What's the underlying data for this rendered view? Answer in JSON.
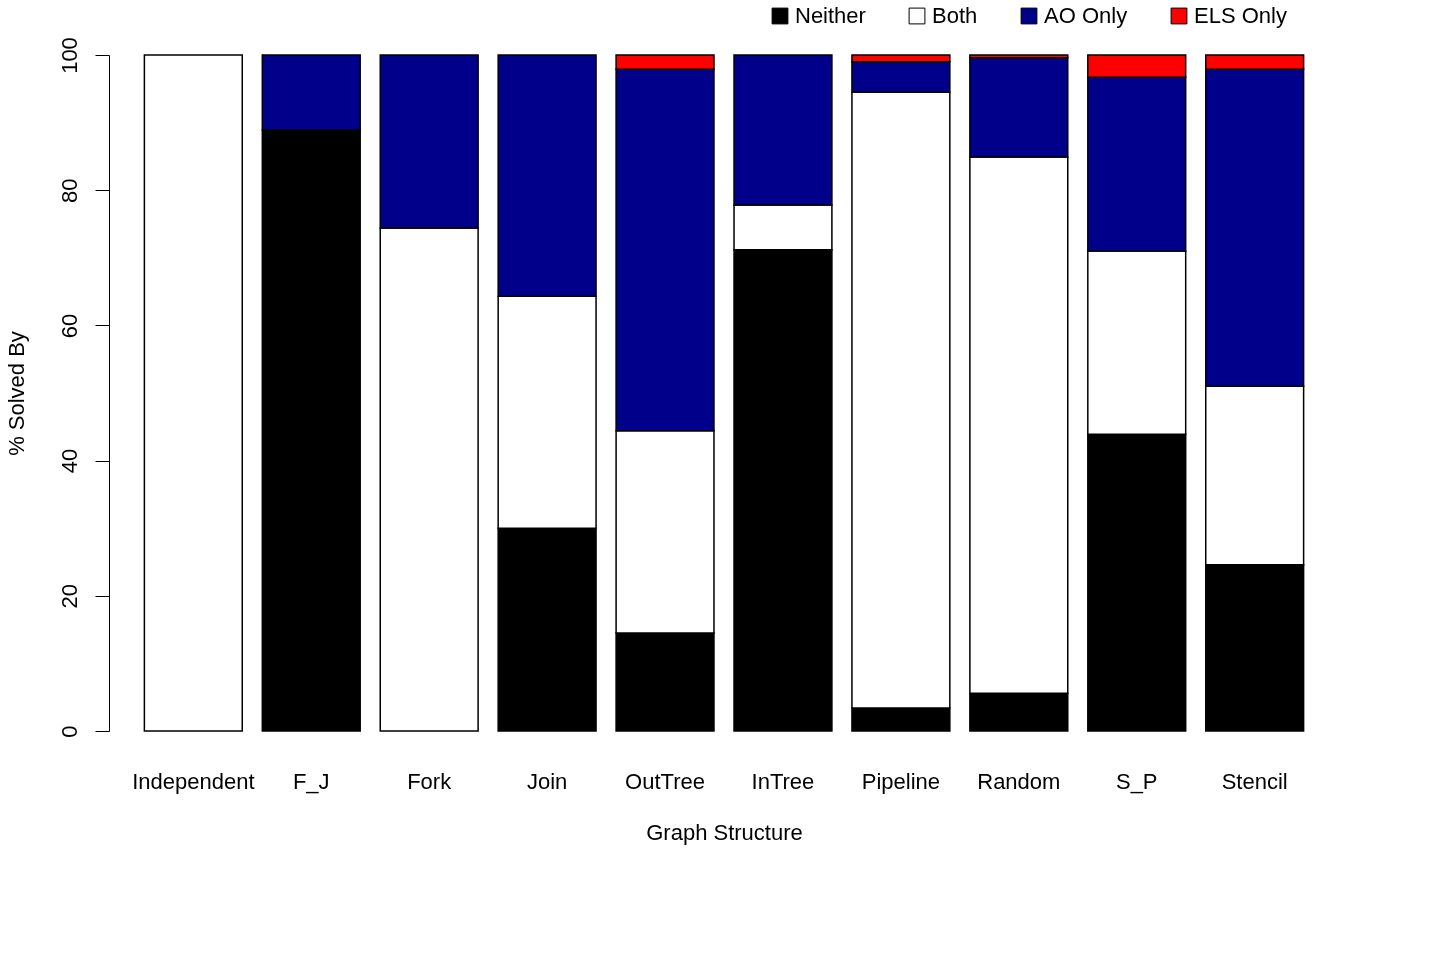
{
  "chart_data": {
    "type": "bar",
    "stacked": true,
    "xlabel": "Graph Structure",
    "ylabel": "% Solved By",
    "categories": [
      "Independent",
      "F_J",
      "Fork",
      "Join",
      "OutTree",
      "InTree",
      "Pipeline",
      "Random",
      "S_P",
      "Stencil"
    ],
    "series": [
      {
        "name": "Neither",
        "color": "#000000",
        "values": [
          0,
          88.9,
          0,
          30.0,
          14.5,
          71.2,
          3.4,
          5.6,
          43.9,
          24.6
        ]
      },
      {
        "name": "Both",
        "color": "#ffffff",
        "values": [
          100,
          0,
          74.4,
          34.3,
          29.9,
          6.6,
          91.1,
          79.3,
          27.1,
          26.4
        ]
      },
      {
        "name": "AO Only",
        "color": "#00008b",
        "values": [
          0,
          11.1,
          25.6,
          35.7,
          53.5,
          22.2,
          4.5,
          14.7,
          25.7,
          46.9
        ]
      },
      {
        "name": "ELS Only",
        "color": "#ff0000",
        "values": [
          0,
          0,
          0,
          0,
          2.1,
          0,
          1.0,
          0.4,
          3.3,
          2.1
        ]
      }
    ],
    "ylim": [
      0,
      100
    ],
    "yticks": [
      0,
      20,
      40,
      60,
      80,
      100
    ],
    "grid": false,
    "legend": "top right"
  }
}
